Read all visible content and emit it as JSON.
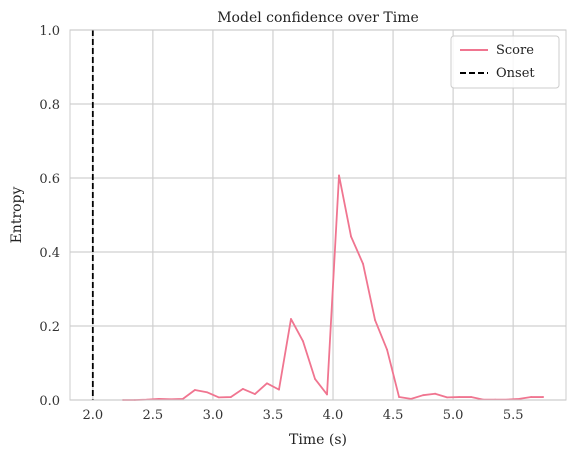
{
  "chart_data": {
    "type": "line",
    "title": "Model confidence over Time",
    "xlabel": "Time (s)",
    "ylabel": "Entropy",
    "xlim": [
      1.81,
      5.94
    ],
    "ylim": [
      0.0,
      1.0
    ],
    "xticks": [
      2.0,
      2.5,
      3.0,
      3.5,
      4.0,
      4.5,
      5.0,
      5.5
    ],
    "yticks": [
      0.0,
      0.2,
      0.4,
      0.6,
      0.8,
      1.0
    ],
    "grid": true,
    "legend_position": "top-right",
    "series": [
      {
        "name": "Score",
        "color": "#f07590",
        "style": "solid",
        "x": [
          2.25,
          2.35,
          2.45,
          2.55,
          2.65,
          2.75,
          2.85,
          2.95,
          3.05,
          3.15,
          3.25,
          3.35,
          3.45,
          3.55,
          3.65,
          3.75,
          3.85,
          3.95,
          4.05,
          4.15,
          4.25,
          4.35,
          4.45,
          4.55,
          4.65,
          4.75,
          4.85,
          4.95,
          5.05,
          5.15,
          5.25,
          5.35,
          5.45,
          5.55,
          5.65,
          5.75
        ],
        "y": [
          0.0,
          0.0,
          0.001,
          0.003,
          0.002,
          0.003,
          0.027,
          0.021,
          0.007,
          0.008,
          0.03,
          0.016,
          0.045,
          0.028,
          0.219,
          0.159,
          0.057,
          0.015,
          0.607,
          0.442,
          0.368,
          0.216,
          0.136,
          0.008,
          0.003,
          0.013,
          0.017,
          0.007,
          0.008,
          0.008,
          0.001,
          0.001,
          0.001,
          0.003,
          0.008,
          0.008
        ]
      }
    ],
    "vlines": [
      {
        "name": "Onset",
        "x": 2.0,
        "color": "#000000",
        "style": "dashed"
      }
    ]
  }
}
